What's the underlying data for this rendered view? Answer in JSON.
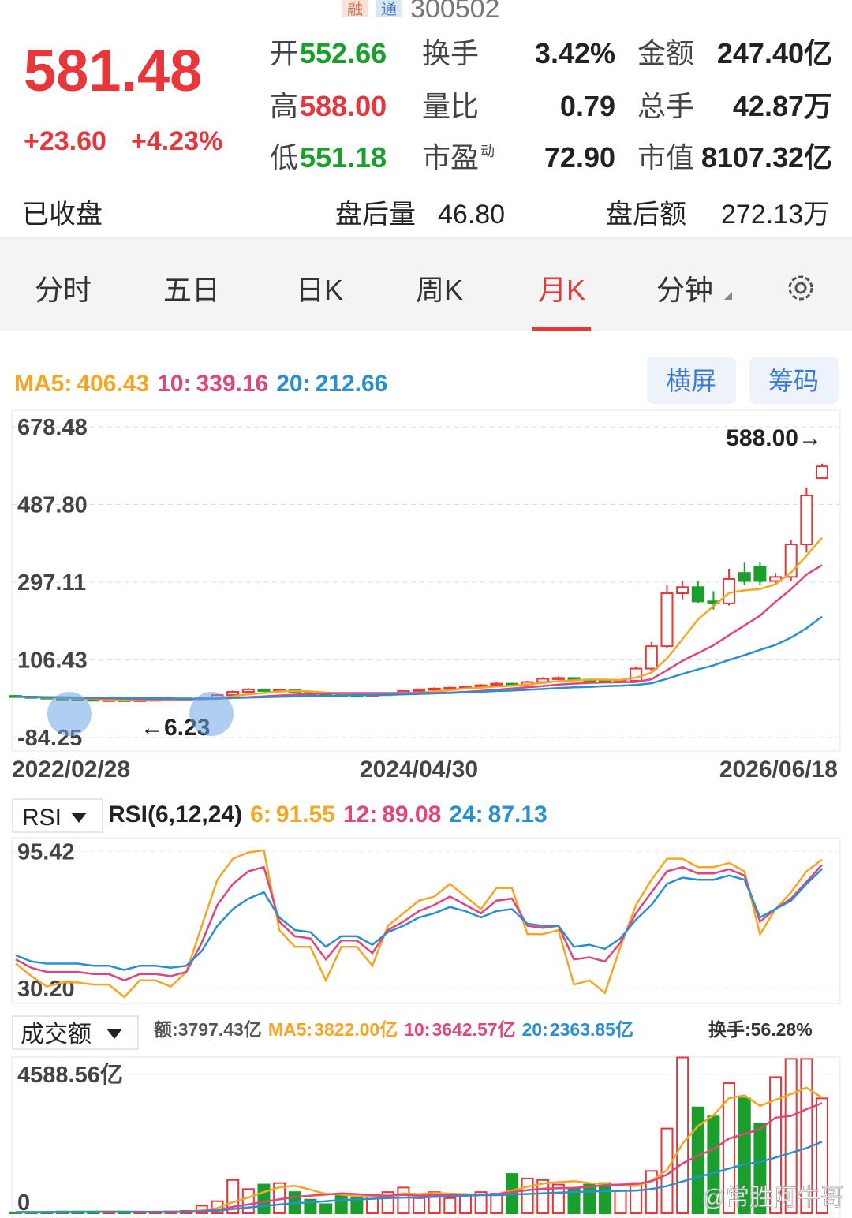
{
  "header": {
    "badges": [
      "融",
      "通"
    ],
    "code": "300502"
  },
  "quote": {
    "price": "581.48",
    "change": "+23.60",
    "change_pct": "+4.23%"
  },
  "stats": [
    [
      {
        "label": "开",
        "value": "552.66",
        "color": "#1a9e2c"
      },
      {
        "label": "换手",
        "value": "3.42%"
      },
      {
        "label": "金额",
        "value": "247.40亿"
      }
    ],
    [
      {
        "label": "高",
        "value": "588.00",
        "color": "#e8363a"
      },
      {
        "label": "量比",
        "value": "0.79"
      },
      {
        "label": "总手",
        "value": "42.87万"
      }
    ],
    [
      {
        "label": "低",
        "value": "551.18",
        "color": "#1a9e2c"
      },
      {
        "label": "市盈",
        "sup": "动",
        "value": "72.90"
      },
      {
        "label": "市值",
        "value": "8107.32亿"
      }
    ]
  ],
  "status": {
    "state": "已收盘",
    "after_volume_label": "盘后量",
    "after_volume": "46.80",
    "after_amount_label": "盘后额",
    "after_amount": "272.13万"
  },
  "tabs": [
    "分时",
    "五日",
    "日K",
    "周K",
    "月K",
    "分钟"
  ],
  "active_tab": 4,
  "buttons": [
    "横屏",
    "筹码"
  ],
  "chart_data": [
    {
      "type": "candlestick",
      "categories": [
        "2022/02/28",
        null,
        null,
        null,
        null,
        null,
        null,
        null,
        null,
        null,
        null,
        null,
        null,
        null,
        null,
        null,
        null,
        null,
        null,
        null,
        null,
        null,
        null,
        null,
        null,
        null,
        "2024/04/30",
        null,
        null,
        null,
        null,
        null,
        null,
        null,
        null,
        null,
        null,
        null,
        null,
        null,
        null,
        null,
        null,
        null,
        null,
        null,
        null,
        null,
        null,
        null,
        null,
        null,
        "2026/06/18"
      ],
      "open": [
        18,
        16,
        14,
        12,
        10,
        9,
        8,
        8,
        7,
        8,
        9,
        10,
        12,
        14,
        20,
        28,
        34,
        30,
        32,
        28,
        22,
        20,
        19,
        18,
        20,
        24,
        30,
        34,
        36,
        38,
        40,
        44,
        48,
        46,
        52,
        60,
        62,
        58,
        56,
        52,
        55,
        85,
        140,
        270,
        285,
        250,
        245,
        320,
        335,
        300,
        310,
        390,
        552.66
      ],
      "high": [
        20,
        18,
        15,
        13,
        11,
        10,
        9,
        9,
        9,
        10,
        11,
        13,
        16,
        22,
        31,
        37,
        36,
        35,
        33,
        29,
        24,
        22,
        21,
        22,
        26,
        32,
        36,
        39,
        41,
        43,
        47,
        51,
        50,
        55,
        64,
        66,
        64,
        60,
        58,
        58,
        90,
        150,
        290,
        300,
        300,
        275,
        330,
        345,
        345,
        320,
        400,
        530,
        588
      ],
      "low": [
        15,
        13,
        11,
        9,
        8,
        7,
        7,
        6.23,
        6.5,
        7,
        9,
        10,
        12,
        13,
        19,
        27,
        29,
        29,
        27,
        21,
        19,
        18,
        17,
        17,
        19,
        23,
        29,
        33,
        35,
        37,
        39,
        43,
        44,
        45,
        50,
        58,
        55,
        54,
        50,
        49,
        53,
        80,
        135,
        255,
        245,
        230,
        240,
        290,
        290,
        290,
        300,
        370,
        551.18
      ],
      "close": [
        16,
        14,
        12,
        10,
        9,
        8,
        8,
        7,
        8,
        9,
        10,
        12,
        14,
        20,
        28,
        34,
        30,
        32,
        28,
        22,
        20,
        19,
        18,
        20,
        24,
        30,
        34,
        36,
        38,
        40,
        44,
        48,
        46,
        52,
        60,
        62,
        58,
        56,
        52,
        55,
        85,
        140,
        270,
        285,
        250,
        245,
        305,
        300,
        300,
        310,
        390,
        510,
        581.48
      ],
      "up_color": "#e8363a",
      "down_color": "#1a9e2c",
      "series": [
        {
          "name": "MA5:",
          "color": "#f5a623",
          "values": [
            16,
            15,
            14,
            13,
            12,
            11,
            9,
            8,
            8,
            8,
            8,
            9,
            11,
            13,
            17,
            22,
            25,
            29,
            30,
            29,
            26,
            24,
            21,
            20,
            20,
            22,
            25,
            29,
            32,
            36,
            38,
            41,
            43,
            46,
            50,
            54,
            56,
            58,
            58,
            57,
            63,
            75,
            110,
            157,
            206,
            238,
            271,
            277,
            280,
            292,
            321,
            362,
            406.43
          ]
        },
        {
          "name": "10:",
          "color": "#e0457b",
          "values": [
            16,
            15,
            15,
            14,
            13,
            12,
            12,
            11,
            10,
            10,
            10,
            10,
            10,
            11,
            13,
            15,
            17,
            19,
            21,
            23,
            24,
            25,
            25,
            25,
            25,
            25,
            25,
            25,
            26,
            28,
            30,
            33,
            36,
            39,
            42,
            46,
            48,
            50,
            51,
            52,
            52,
            59,
            81,
            104,
            123,
            142,
            167,
            191,
            215,
            249,
            280,
            316,
            339.16
          ]
        },
        {
          "name": "20:",
          "color": "#2a8fd0",
          "values": [
            16,
            16,
            15,
            15,
            14,
            14,
            13,
            13,
            12,
            12,
            12,
            11,
            11,
            12,
            13,
            14,
            15,
            16,
            17,
            18,
            18,
            19,
            20,
            20,
            21,
            22,
            23,
            24,
            25,
            27,
            28,
            30,
            31,
            33,
            35,
            37,
            39,
            40,
            42,
            43,
            45,
            49,
            60,
            72,
            83,
            93,
            106,
            118,
            131,
            143,
            161,
            184,
            212.66
          ]
        }
      ],
      "ylim": [
        -117.3,
        719.3
      ],
      "yticks": [
        678.48,
        {
          "value": 487.8,
          "label": "487.80"
        },
        297.11,
        106.43,
        -84.25
      ],
      "grid": true,
      "high_label": "588.00→",
      "low_label": "←6.23"
    },
    {
      "type": "line",
      "selector": "RSI",
      "title": "RSI(6,12,24)",
      "series": [
        {
          "name": "6:",
          "color": "#f5a623",
          "values": [
            42,
            36,
            31,
            33,
            33,
            32,
            32,
            26,
            34,
            34,
            31,
            38,
            60,
            82,
            92,
            95,
            96,
            58,
            50,
            50,
            34,
            50,
            50,
            41,
            60,
            66,
            72,
            74,
            80,
            74,
            68,
            78,
            78,
            56,
            56,
            58,
            32,
            34,
            28,
            50,
            70,
            82,
            92,
            92,
            88,
            88,
            90,
            86,
            56,
            68,
            76,
            86,
            91.55
          ]
        },
        {
          "name": "12:",
          "color": "#e0457b",
          "values": [
            44,
            40,
            38,
            38,
            38,
            37,
            37,
            34,
            37,
            37,
            36,
            38,
            52,
            70,
            80,
            86,
            88,
            62,
            55,
            54,
            44,
            53,
            53,
            47,
            58,
            62,
            67,
            70,
            74,
            70,
            66,
            72,
            73,
            60,
            59,
            60,
            44,
            45,
            43,
            52,
            66,
            76,
            86,
            88,
            85,
            85,
            87,
            84,
            62,
            68,
            73,
            81,
            89.08
          ]
        },
        {
          "name": "24:",
          "color": "#2a8fd0",
          "values": [
            46,
            43,
            42,
            42,
            42,
            41,
            41,
            39,
            41,
            41,
            40,
            41,
            48,
            60,
            68,
            73,
            76,
            64,
            58,
            57,
            50,
            55,
            55,
            51,
            57,
            60,
            64,
            66,
            69,
            67,
            64,
            67,
            68,
            61,
            60,
            60,
            50,
            51,
            49,
            54,
            63,
            70,
            80,
            83,
            82,
            82,
            84,
            82,
            64,
            68,
            72,
            80,
            87.13
          ]
        }
      ],
      "ylim": [
        23,
        102
      ],
      "yticks": [
        95.42,
        {
          "value": 30.2,
          "label": "30.20"
        }
      ]
    },
    {
      "type": "bar",
      "selector": "成交额",
      "amount": {
        "name": "额:",
        "text": "3797.43亿"
      },
      "values": [
        30,
        30,
        40,
        60,
        60,
        60,
        60,
        40,
        30,
        40,
        60,
        80,
        250,
        400,
        1100,
        800,
        950,
        1000,
        700,
        450,
        300,
        650,
        500,
        600,
        700,
        850,
        500,
        700,
        500,
        600,
        700,
        650,
        1300,
        1150,
        1100,
        950,
        800,
        950,
        1000,
        750,
        1000,
        1400,
        2800,
        5150,
        3500,
        3200,
        4300,
        3800,
        2950,
        4500,
        5100,
        5100,
        3797.43
      ],
      "series": [
        {
          "name": "MA5:",
          "current": "3822.00亿",
          "color": "#f5a623",
          "values": [
            40,
            35,
            40,
            45,
            50,
            55,
            60,
            55,
            50,
            50,
            50,
            55,
            90,
            170,
            370,
            520,
            700,
            860,
            910,
            780,
            640,
            620,
            560,
            550,
            550,
            660,
            630,
            670,
            650,
            630,
            600,
            630,
            750,
            880,
            980,
            1030,
            1060,
            1000,
            960,
            930,
            900,
            1080,
            1430,
            2300,
            2880,
            3240,
            3800,
            3900,
            3550,
            3750,
            3940,
            4150,
            3822
          ]
        },
        {
          "name": "10:",
          "current": "3642.57亿",
          "color": "#e0457b",
          "values": [
            40,
            38,
            38,
            40,
            43,
            46,
            50,
            50,
            50,
            50,
            50,
            55,
            70,
            110,
            210,
            290,
            380,
            460,
            540,
            580,
            620,
            660,
            630,
            600,
            580,
            610,
            580,
            600,
            600,
            620,
            620,
            630,
            700,
            760,
            810,
            830,
            840,
            870,
            930,
            950,
            970,
            1060,
            1280,
            1650,
            1900,
            2120,
            2470,
            2620,
            2780,
            3160,
            3220,
            3440,
            3642.57
          ]
        },
        {
          "name": "20:",
          "current": "2363.85亿",
          "color": "#2a8fd0",
          "values": [
            40,
            38,
            38,
            40,
            43,
            46,
            48,
            48,
            48,
            48,
            48,
            50,
            55,
            80,
            140,
            190,
            240,
            290,
            330,
            360,
            400,
            440,
            460,
            480,
            500,
            520,
            520,
            540,
            560,
            580,
            600,
            600,
            620,
            640,
            660,
            680,
            700,
            720,
            730,
            740,
            750,
            800,
            900,
            1050,
            1200,
            1330,
            1480,
            1620,
            1700,
            1840,
            2000,
            2150,
            2363.85
          ]
        }
      ],
      "turnover": {
        "name": "换手:",
        "text": "56.28%"
      },
      "ylim": [
        0,
        5162
      ],
      "yticks": [
        {
          "value": 4588.56,
          "label": "4588.56亿"
        },
        0
      ]
    }
  ],
  "watermark": "@常胜阿牛哥"
}
